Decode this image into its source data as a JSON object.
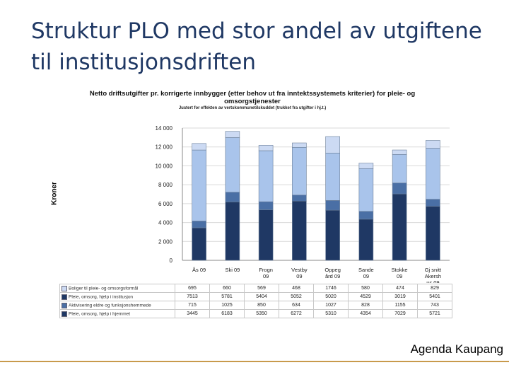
{
  "slide": {
    "title": "Struktur PLO med stor andel av utgiftene til institusjonsdriften",
    "footer": "Agenda Kaupang"
  },
  "chart_data": {
    "type": "bar",
    "stacked": true,
    "title": "Netto driftsutgifter pr. korrigerte innbygger (etter behov ut fra inntektssystemets kriterier) for pleie- og omsorgstjenester",
    "subtitle": "Justert for effekten av vertskommunetilskuddet (trukket fra utgifter i hj.t.)",
    "ylabel": "Kroner",
    "ylim": [
      0,
      14000
    ],
    "yticks": [
      "0",
      "2 000",
      "4 000",
      "6 000",
      "8 000",
      "10 000",
      "12 000",
      "14 000"
    ],
    "categories": [
      "Ås 09",
      "Ski 09",
      "Frogn 09",
      "Vestby 09",
      "Oppegård 09",
      "Sande 09",
      "Stokke 09",
      "Gj snitt Akershus 09"
    ],
    "category_labels": [
      [
        "Ås 09"
      ],
      [
        "Ski 09"
      ],
      [
        "Frogn",
        "09"
      ],
      [
        "Vestby",
        "09"
      ],
      [
        "Oppeg",
        "ård 09"
      ],
      [
        "Sande",
        "09"
      ],
      [
        "Stokke",
        "09"
      ],
      [
        "Gj snitt",
        "Akersh",
        "us 09"
      ]
    ],
    "series": [
      {
        "name": "Pleie, omsorg, hjelp i hjemmet",
        "color": "#1f3864",
        "values": [
          3445,
          6183,
          5350,
          6272,
          5310,
          4354,
          7029,
          5721
        ]
      },
      {
        "name": "Aktivisering eldre og funksjonshemmede",
        "color": "#4a6fa5",
        "values": [
          715,
          1025,
          850,
          634,
          1027,
          828,
          1155,
          743
        ]
      },
      {
        "name": "Pleie, omsorg, hjelp i institusjon",
        "color": "#a9c4eb",
        "values": [
          7513,
          5781,
          5404,
          5052,
          5020,
          4529,
          3019,
          5401
        ]
      },
      {
        "name": "Boliger til pleie- og omsorgsformål",
        "color": "#ccdaf3",
        "values": [
          695,
          660,
          569,
          468,
          1746,
          580,
          474,
          829
        ]
      }
    ],
    "table_rows": [
      {
        "label": "Boliger til pleie- og omsorgsformål",
        "values": [
          "695",
          "660",
          "569",
          "468",
          "1746",
          "580",
          "474",
          "829"
        ]
      },
      {
        "label": "Pleie, omsorg, hjelp i institusjon",
        "values": [
          "7513",
          "5781",
          "5404",
          "5052",
          "5020",
          "4529",
          "3019",
          "5401"
        ]
      },
      {
        "label": "Aktivisering eldre og funksjonshemmede",
        "values": [
          "715",
          "1025",
          "850",
          "634",
          "1027",
          "828",
          "1155",
          "743"
        ]
      },
      {
        "label": "Pleie, omsorg, hjelp i hjemmet",
        "values": [
          "3445",
          "6183",
          "5350",
          "6272",
          "5310",
          "4354",
          "7029",
          "5721"
        ]
      }
    ]
  }
}
